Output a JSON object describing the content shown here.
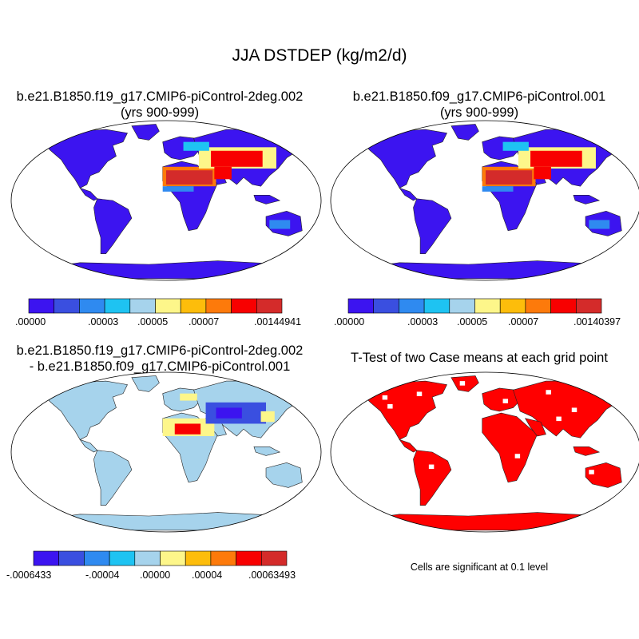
{
  "title": "JJA DSTDEP (kg/m2/d)",
  "colors": {
    "seq": [
      "#3c14f0",
      "#3a4fe0",
      "#2f8af0",
      "#1ec3f2",
      "#a6d3ec",
      "#fdf68a",
      "#fdbd0b",
      "#fd7a0b",
      "#f80000",
      "#d42b2a"
    ],
    "diff": [
      "#3c14f0",
      "#3a4fe0",
      "#2f8af0",
      "#1ec3f2",
      "#a6d3ec",
      "#fdf68a",
      "#fdbd0b",
      "#fd7a0b",
      "#f80000",
      "#d42b2a"
    ],
    "sig": "#ff0000",
    "ocean": "#ffffff"
  },
  "panels": [
    {
      "id": "case1",
      "title_line1": "b.e21.B1850.f19_g17.CMIP6-piControl-2deg.002",
      "title_line2": "(yrs 900-999)",
      "colorbar_labels": [
        ".00000",
        ".00003",
        ".00005",
        ".00007",
        ".00144941"
      ]
    },
    {
      "id": "case2",
      "title_line1": "b.e21.B1850.f09_g17.CMIP6-piControl.001",
      "title_line2": "(yrs 900-999)",
      "colorbar_labels": [
        ".00000",
        ".00003",
        ".00005",
        ".00007",
        ".00140397"
      ]
    },
    {
      "id": "diff",
      "title_line1": "b.e21.B1850.f19_g17.CMIP6-piControl-2deg.002",
      "title_line2": "- b.e21.B1850.f09_g17.CMIP6-piControl.001",
      "colorbar_labels": [
        "-.0006433",
        "-.00004",
        ".00000",
        ".00004",
        ".00063493"
      ]
    },
    {
      "id": "ttest",
      "title_line1": "T-Test of two Case means at each grid point",
      "note": "Cells are significant at 0.1 level"
    }
  ]
}
